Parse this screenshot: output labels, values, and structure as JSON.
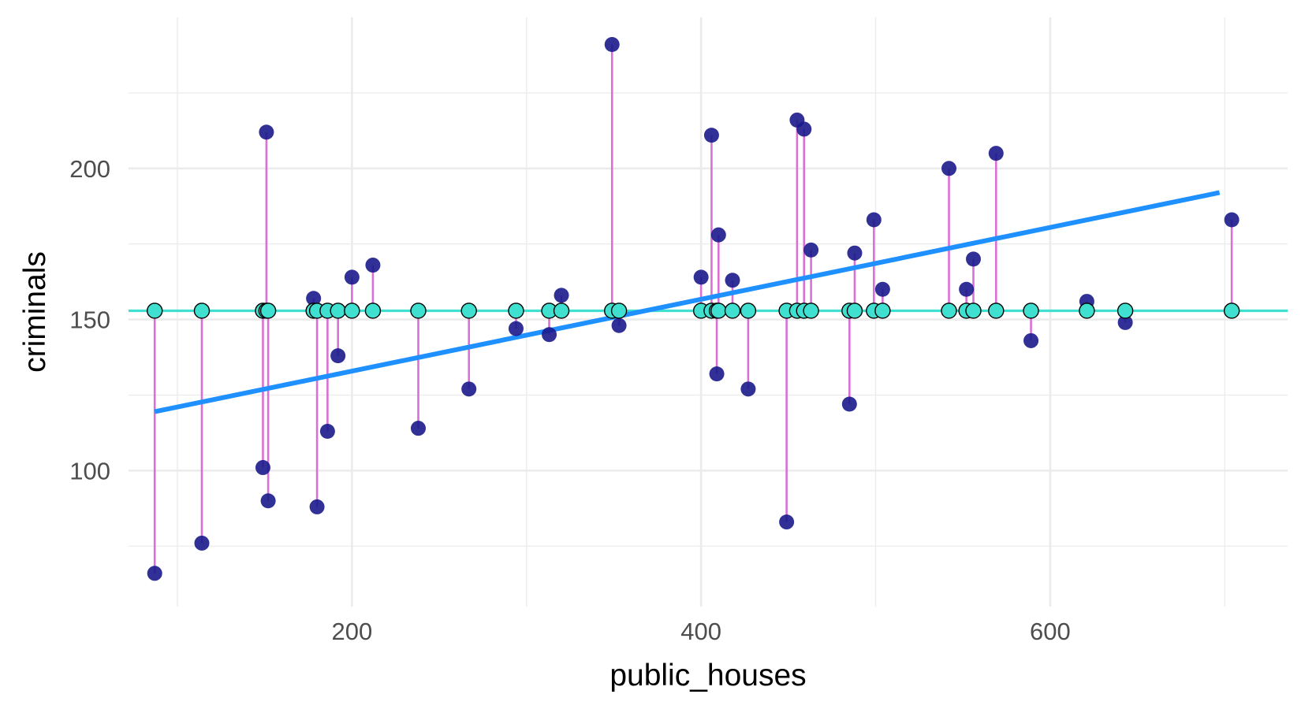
{
  "chart_data": {
    "type": "scatter",
    "xlabel": "public_houses",
    "ylabel": "criminals",
    "xlim": [
      72,
      736
    ],
    "ylim": [
      55,
      250
    ],
    "x_ticks": [
      200,
      400,
      600
    ],
    "x_tick_labels": [
      "200",
      "400",
      "600"
    ],
    "y_ticks": [
      100,
      150,
      200
    ],
    "y_tick_labels": [
      "100",
      "150",
      "200"
    ],
    "x_minor_ticks": [
      100,
      300,
      500,
      700
    ],
    "y_minor_ticks": [
      75,
      125,
      175,
      225
    ],
    "grid": true,
    "legend": "none",
    "mean_criminals": 152.9,
    "regression_line": {
      "x": [
        87,
        697
      ],
      "y": [
        119.5,
        192
      ]
    },
    "colors": {
      "observed": "#1a1a8c",
      "mean_points": "#40e0d0",
      "mean_line": "#40e0d0",
      "regression": "#1e90ff",
      "residuals": "#da70d6"
    },
    "points": [
      {
        "x": 87,
        "y": 66
      },
      {
        "x": 114,
        "y": 76
      },
      {
        "x": 149,
        "y": 101
      },
      {
        "x": 151,
        "y": 212
      },
      {
        "x": 152,
        "y": 90
      },
      {
        "x": 178,
        "y": 157
      },
      {
        "x": 180,
        "y": 88
      },
      {
        "x": 186,
        "y": 113
      },
      {
        "x": 192,
        "y": 138
      },
      {
        "x": 200,
        "y": 164
      },
      {
        "x": 212,
        "y": 168
      },
      {
        "x": 238,
        "y": 114
      },
      {
        "x": 267,
        "y": 127
      },
      {
        "x": 294,
        "y": 147
      },
      {
        "x": 313,
        "y": 145
      },
      {
        "x": 320,
        "y": 158
      },
      {
        "x": 349,
        "y": 241
      },
      {
        "x": 353,
        "y": 148
      },
      {
        "x": 400,
        "y": 164
      },
      {
        "x": 406,
        "y": 211
      },
      {
        "x": 409,
        "y": 132
      },
      {
        "x": 410,
        "y": 178
      },
      {
        "x": 418,
        "y": 163
      },
      {
        "x": 427,
        "y": 127
      },
      {
        "x": 449,
        "y": 83
      },
      {
        "x": 455,
        "y": 216
      },
      {
        "x": 459,
        "y": 213
      },
      {
        "x": 463,
        "y": 173
      },
      {
        "x": 485,
        "y": 122
      },
      {
        "x": 488,
        "y": 172
      },
      {
        "x": 499,
        "y": 183
      },
      {
        "x": 504,
        "y": 160
      },
      {
        "x": 542,
        "y": 200
      },
      {
        "x": 552,
        "y": 160
      },
      {
        "x": 556,
        "y": 170
      },
      {
        "x": 569,
        "y": 205
      },
      {
        "x": 589,
        "y": 143
      },
      {
        "x": 621,
        "y": 156
      },
      {
        "x": 643,
        "y": 149
      },
      {
        "x": 704,
        "y": 183
      }
    ]
  }
}
